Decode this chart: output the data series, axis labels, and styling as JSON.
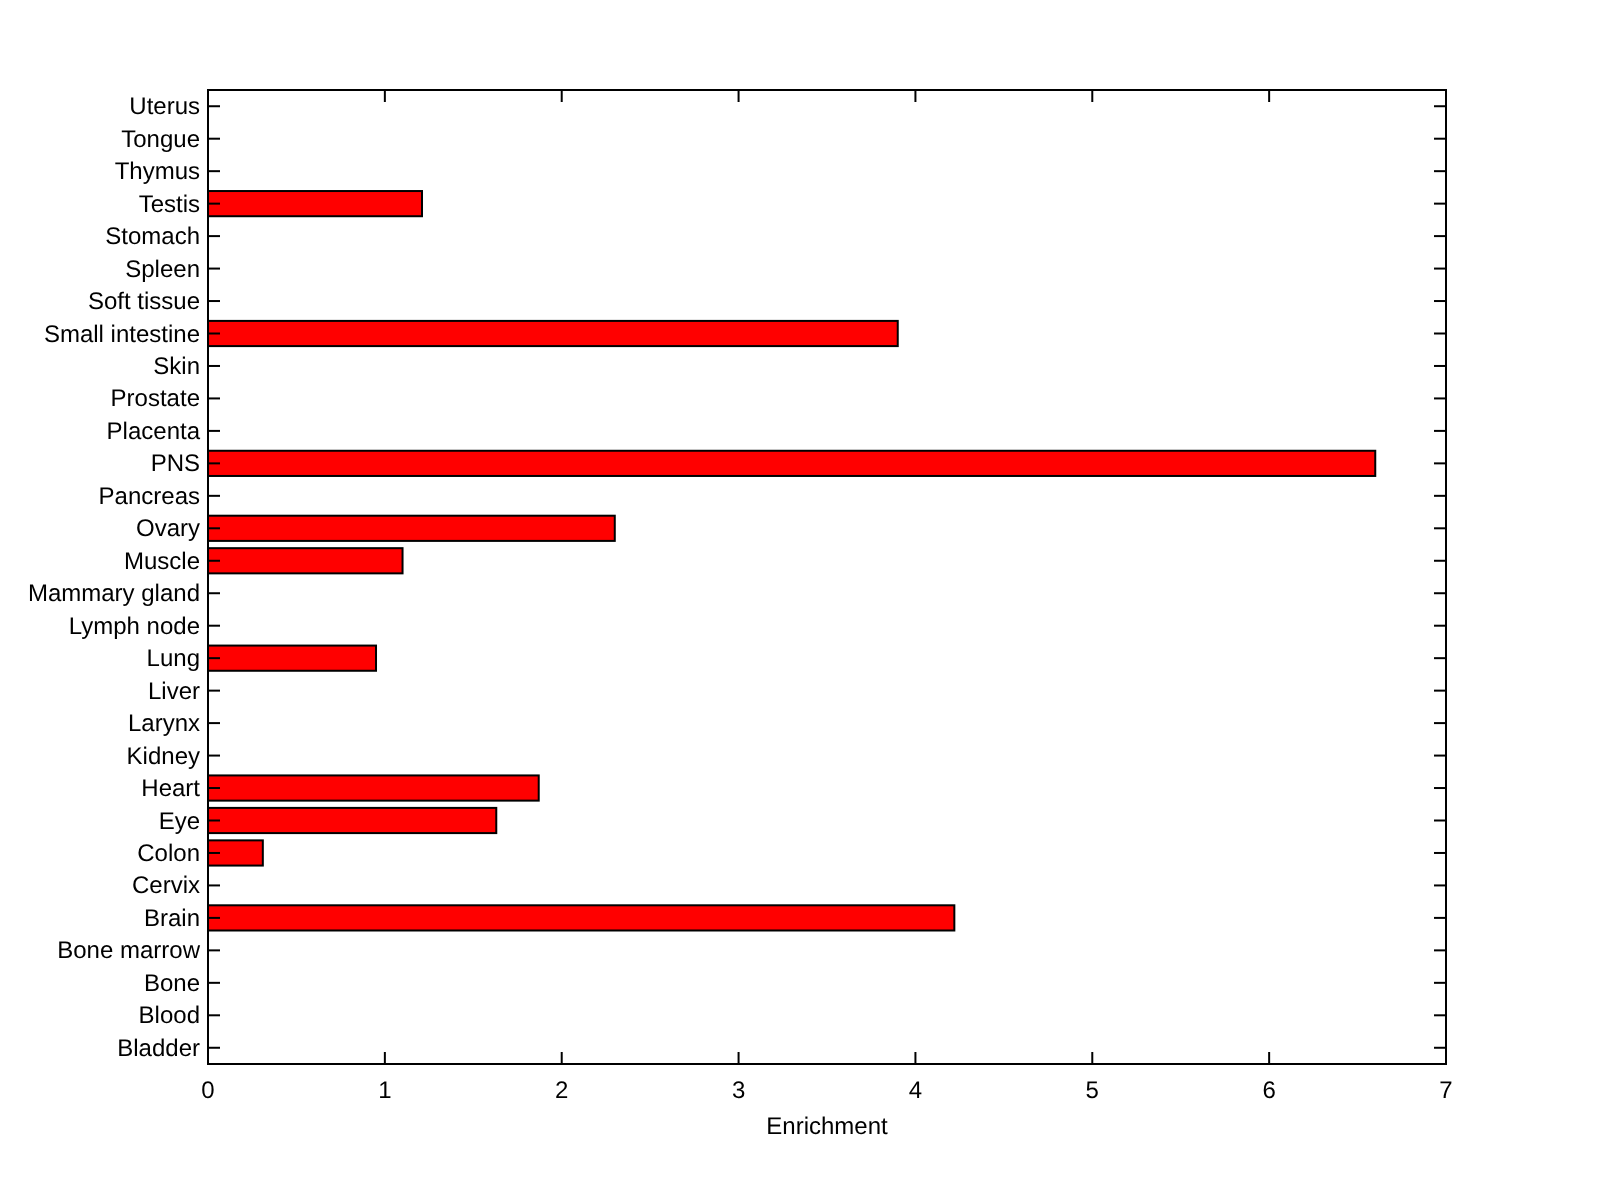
{
  "chart_data": {
    "type": "bar",
    "orientation": "horizontal",
    "xlabel": "Enrichment",
    "categories": [
      "Uterus",
      "Tongue",
      "Thymus",
      "Testis",
      "Stomach",
      "Spleen",
      "Soft tissue",
      "Small intestine",
      "Skin",
      "Prostate",
      "Placenta",
      "PNS",
      "Pancreas",
      "Ovary",
      "Muscle",
      "Mammary gland",
      "Lymph node",
      "Lung",
      "Liver",
      "Larynx",
      "Kidney",
      "Heart",
      "Eye",
      "Colon",
      "Cervix",
      "Brain",
      "Bone marrow",
      "Bone",
      "Blood",
      "Bladder"
    ],
    "values": [
      0,
      0,
      0,
      1.21,
      0,
      0,
      0,
      3.9,
      0,
      0,
      0,
      6.6,
      0,
      2.3,
      1.1,
      0,
      0,
      0.95,
      0,
      0,
      0,
      1.87,
      1.63,
      0.31,
      0,
      4.22,
      0,
      0,
      0,
      0
    ],
    "color": "#ff0000",
    "xlim": [
      0,
      7
    ],
    "xticks": [
      0,
      1,
      2,
      3,
      4,
      5,
      6,
      7
    ],
    "grid": false
  }
}
